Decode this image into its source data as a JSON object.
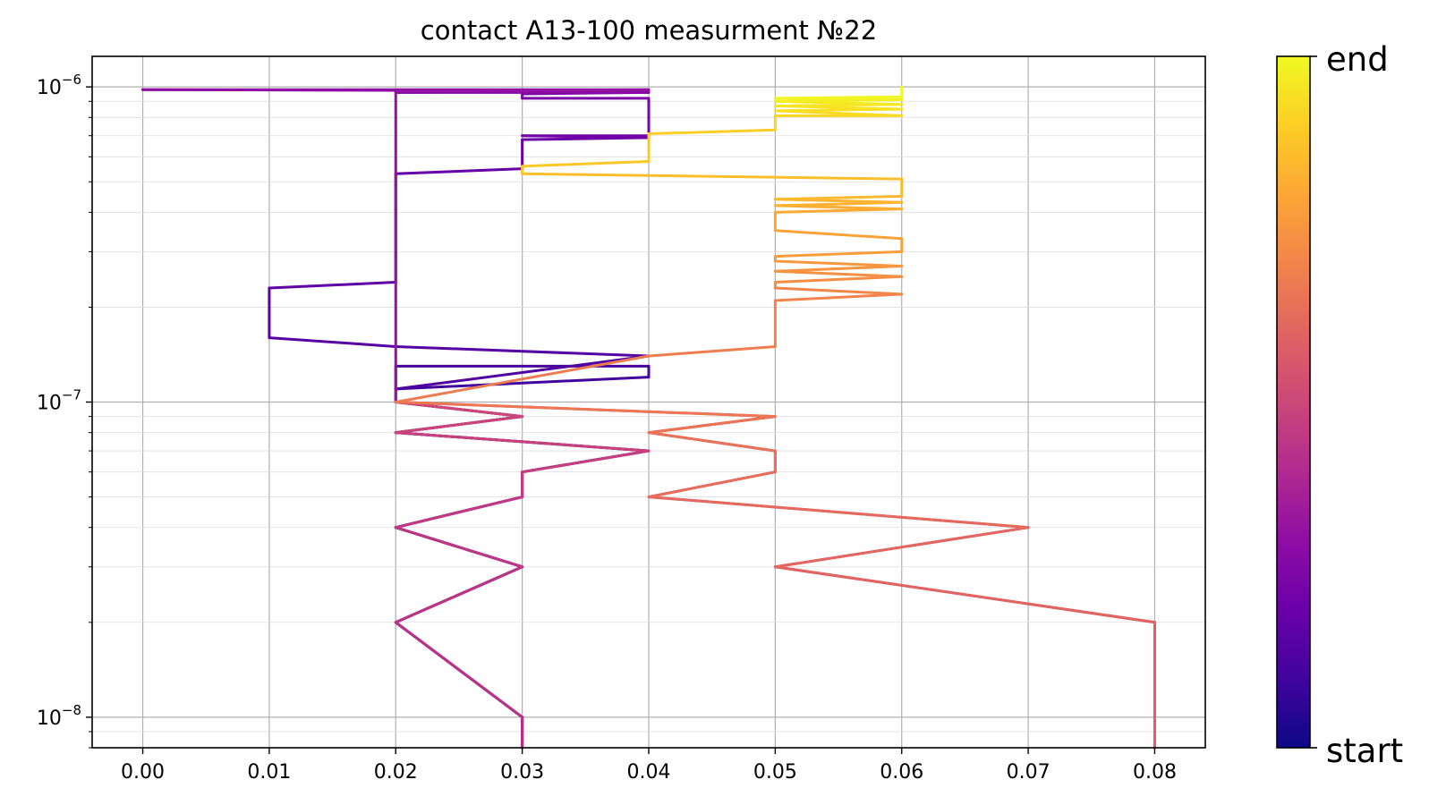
{
  "chart_data": {
    "type": "line",
    "title": "contact A13-100 measurment №22",
    "xlabel": "",
    "ylabel": "",
    "xlim": [
      -0.004,
      0.084
    ],
    "ylim": [
      8e-09,
      1.25e-06
    ],
    "yscale": "log",
    "grid": true,
    "x_ticks": [
      0.0,
      0.01,
      0.02,
      0.03,
      0.04,
      0.05,
      0.06,
      0.07,
      0.08
    ],
    "x_tick_labels": [
      "0.00",
      "0.01",
      "0.02",
      "0.03",
      "0.04",
      "0.05",
      "0.06",
      "0.07",
      "0.08"
    ],
    "y_ticks": [
      {
        "value": 1e-06,
        "base": "10",
        "exp": "−6"
      },
      {
        "value": 1e-07,
        "base": "10",
        "exp": "−7"
      },
      {
        "value": 1e-08,
        "base": "10",
        "exp": "−8"
      }
    ],
    "colormap": "plasma",
    "colorbar": {
      "start_label": "start",
      "end_label": "end"
    },
    "points": [
      [
        0.03,
        8e-09
      ],
      [
        0.03,
        1e-08
      ],
      [
        0.02,
        2e-08
      ],
      [
        0.03,
        3e-08
      ],
      [
        0.02,
        4e-08
      ],
      [
        0.03,
        5e-08
      ],
      [
        0.03,
        6e-08
      ],
      [
        0.04,
        7e-08
      ],
      [
        0.02,
        8e-08
      ],
      [
        0.03,
        9e-08
      ],
      [
        0.02,
        1e-07
      ],
      [
        0.02,
        1.1e-07
      ],
      [
        0.04,
        1.2e-07
      ],
      [
        0.04,
        1.3e-07
      ],
      [
        0.02,
        1.3e-07
      ],
      [
        0.02,
        1.1e-07
      ],
      [
        0.04,
        1.4e-07
      ],
      [
        0.02,
        1.5e-07
      ],
      [
        0.01,
        1.6e-07
      ],
      [
        0.01,
        2.3e-07
      ],
      [
        0.02,
        2.4e-07
      ],
      [
        0.02,
        5.3e-07
      ],
      [
        0.03,
        5.5e-07
      ],
      [
        0.03,
        6.8e-07
      ],
      [
        0.04,
        6.9e-07
      ],
      [
        0.03,
        7e-07
      ],
      [
        0.04,
        7e-07
      ],
      [
        0.04,
        9.2e-07
      ],
      [
        0.03,
        9.2e-07
      ],
      [
        0.03,
        9.5e-07
      ],
      [
        0.04,
        9.6e-07
      ],
      [
        0.02,
        9.6e-07
      ],
      [
        0.04,
        9.7e-07
      ],
      [
        0.0,
        9.8e-07
      ],
      [
        0.04,
        9.8e-07
      ],
      [
        0.02,
        9.7e-07
      ],
      [
        0.02,
        1e-07
      ],
      [
        0.03,
        9e-08
      ],
      [
        0.02,
        8e-08
      ],
      [
        0.04,
        7e-08
      ],
      [
        0.03,
        6e-08
      ],
      [
        0.03,
        5e-08
      ],
      [
        0.02,
        4e-08
      ],
      [
        0.03,
        3e-08
      ],
      [
        0.02,
        2e-08
      ],
      [
        0.03,
        1e-08
      ],
      [
        0.03,
        8e-09
      ],
      [
        0.03,
        1e-08
      ],
      [
        0.02,
        2e-08
      ],
      [
        0.03,
        3e-08
      ],
      [
        0.02,
        4e-08
      ],
      [
        0.03,
        5e-08
      ],
      [
        0.03,
        6e-08
      ],
      [
        0.04,
        7e-08
      ],
      [
        0.02,
        8e-08
      ],
      [
        0.03,
        9e-08
      ],
      [
        0.02,
        1e-07
      ],
      [
        0.05,
        9e-08
      ],
      [
        0.04,
        8e-08
      ],
      [
        0.05,
        7e-08
      ],
      [
        0.05,
        6e-08
      ],
      [
        0.04,
        5e-08
      ],
      [
        0.07,
        4e-08
      ],
      [
        0.05,
        3e-08
      ],
      [
        0.08,
        2e-08
      ],
      [
        0.08,
        8e-09
      ],
      [
        0.08,
        2e-08
      ],
      [
        0.05,
        3e-08
      ],
      [
        0.07,
        4e-08
      ],
      [
        0.04,
        5e-08
      ],
      [
        0.05,
        6e-08
      ],
      [
        0.05,
        7e-08
      ],
      [
        0.04,
        8e-08
      ],
      [
        0.05,
        9e-08
      ],
      [
        0.02,
        1e-07
      ],
      [
        0.04,
        1.4e-07
      ],
      [
        0.05,
        1.5e-07
      ],
      [
        0.05,
        2.1e-07
      ],
      [
        0.06,
        2.2e-07
      ],
      [
        0.05,
        2.3e-07
      ],
      [
        0.05,
        2.4e-07
      ],
      [
        0.06,
        2.5e-07
      ],
      [
        0.05,
        2.6e-07
      ],
      [
        0.06,
        2.7e-07
      ],
      [
        0.05,
        2.8e-07
      ],
      [
        0.05,
        2.9e-07
      ],
      [
        0.06,
        3e-07
      ],
      [
        0.06,
        3.3e-07
      ],
      [
        0.05,
        3.5e-07
      ],
      [
        0.05,
        4e-07
      ],
      [
        0.06,
        4.1e-07
      ],
      [
        0.05,
        4.2e-07
      ],
      [
        0.06,
        4.3e-07
      ],
      [
        0.05,
        4.4e-07
      ],
      [
        0.06,
        4.5e-07
      ],
      [
        0.06,
        5.1e-07
      ],
      [
        0.03,
        5.3e-07
      ],
      [
        0.03,
        5.6e-07
      ],
      [
        0.04,
        5.8e-07
      ],
      [
        0.04,
        7.1e-07
      ],
      [
        0.05,
        7.3e-07
      ],
      [
        0.05,
        8.1e-07
      ],
      [
        0.06,
        8.1e-07
      ],
      [
        0.05,
        8.4e-07
      ],
      [
        0.06,
        8.5e-07
      ],
      [
        0.05,
        8.7e-07
      ],
      [
        0.06,
        8.8e-07
      ],
      [
        0.05,
        9e-07
      ],
      [
        0.06,
        9.1e-07
      ],
      [
        0.05,
        9.2e-07
      ],
      [
        0.06,
        9.3e-07
      ],
      [
        0.06,
        1e-06
      ]
    ]
  }
}
